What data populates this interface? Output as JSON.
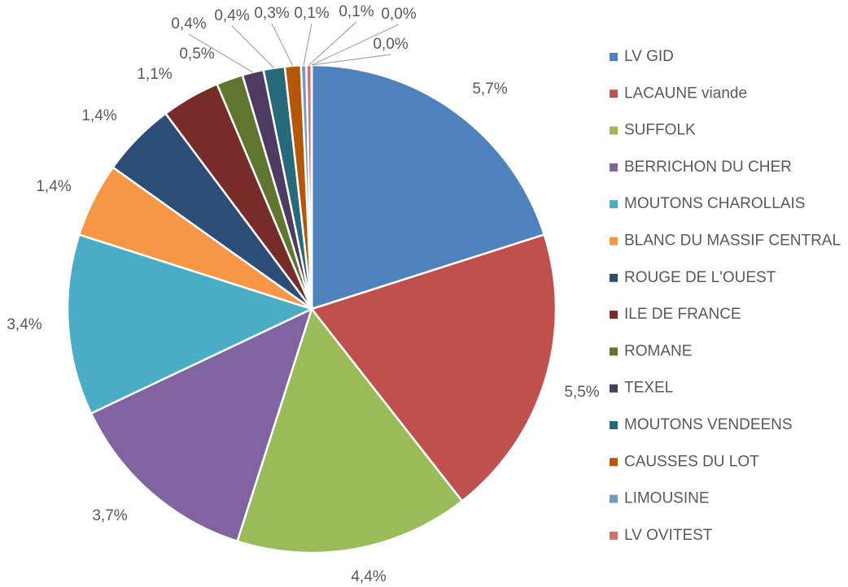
{
  "chart_data": {
    "type": "pie",
    "categories": [
      "LV GID",
      "LACAUNE viande",
      "SUFFOLK",
      "BERRICHON DU CHER",
      "MOUTONS CHAROLLAIS",
      "BLANC DU MASSIF CENTRAL",
      "ROUGE DE L'OUEST",
      "ILE DE FRANCE",
      "ROMANE",
      "TEXEL",
      "MOUTONS VENDEENS",
      "CAUSSES DU LOT",
      "LIMOUSINE",
      "LV OVITEST",
      null,
      null
    ],
    "values": [
      5.7,
      5.5,
      4.4,
      3.7,
      3.4,
      1.4,
      1.4,
      1.1,
      0.5,
      0.4,
      0.4,
      0.3,
      0.1,
      0.1,
      0.0,
      0.0
    ],
    "value_labels": [
      "5,7%",
      "5,5%",
      "4,4%",
      "3,7%",
      "3,4%",
      "1,4%",
      "1,4%",
      "1,1%",
      "0,5%",
      "0,4%",
      "0,4%",
      "0,3%",
      "0,1%",
      "0,1%",
      "0,0%",
      "0,0%"
    ],
    "colors": [
      "#4f81bd",
      "#c0504d",
      "#9bbb59",
      "#8064a2",
      "#4bacc6",
      "#f79646",
      "#2c4d75",
      "#772c2a",
      "#5f7530",
      "#4d3b62",
      "#276a7c",
      "#b65708",
      "#729aca",
      "#d0716e",
      "#afc97a",
      "#9c85c0"
    ],
    "legend": "right"
  }
}
